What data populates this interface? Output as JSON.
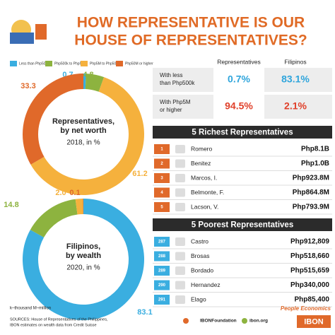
{
  "title_lines": [
    "HOW REPRESENTATIVE IS OUR",
    "HOUSE OF REPRESENTATIVES?"
  ],
  "chart_data": [
    {
      "type": "pie",
      "categories": [
        "Less than Php500k",
        "Php500k to Php5M",
        "Php5M to Php50M",
        "Php50M or higher"
      ],
      "colors": [
        "#3aaee0",
        "#8db33f",
        "#f5b13d",
        "#e0692a"
      ],
      "label_lines": [
        "Representatives,",
        "by net worth"
      ],
      "subtitle": "2018, in %",
      "values": [
        0.7,
        4.8,
        61.2,
        33.3
      ]
    },
    {
      "type": "pie",
      "label_lines": [
        "Filipinos,",
        "by wealth"
      ],
      "subtitle": "2020, in %",
      "values": [
        83.1,
        14.8,
        2.0,
        0.1
      ],
      "value_labels": [
        "83.1",
        "14.8",
        "2.0",
        "0.1"
      ]
    }
  ],
  "comparison": {
    "headers": [
      "Representatives",
      "Filipinos"
    ],
    "rows": [
      {
        "label_lines": [
          "With less",
          "than Php500k"
        ],
        "cells": [
          "0.7%",
          "83.1%"
        ]
      },
      {
        "label_lines": [
          "With Php5M",
          "or higher"
        ],
        "cells": [
          "94.5%",
          "2.1%"
        ]
      }
    ]
  },
  "richest": {
    "title": "5 Richest Representatives",
    "rows": [
      [
        "1",
        "Romero",
        "Php8.1B"
      ],
      [
        "2",
        "Benitez",
        "Php1.0B"
      ],
      [
        "3",
        "Marcos, I.",
        "Php923.8M"
      ],
      [
        "4",
        "Belmonte, F.",
        "Php864.8M"
      ],
      [
        "5",
        "Lacson, V.",
        "Php793.9M"
      ]
    ]
  },
  "poorest": {
    "title": "5 Poorest Representatives",
    "rows": [
      [
        "287",
        "Castro",
        "Php912,809"
      ],
      [
        "288",
        "Brosas",
        "Php518,660"
      ],
      [
        "289",
        "Bordado",
        "Php515,659"
      ],
      [
        "290",
        "Hernandez",
        "Php340,000"
      ],
      [
        "291",
        "Elago",
        "Php85,400"
      ]
    ]
  },
  "footer": {
    "units": "k–thousand   M–million",
    "sources": [
      "SOURCES: House of Representatives of the Philippines,",
      "IBON estimates on wealth data from Credit Suisse"
    ],
    "social": "IBONFoundation",
    "site": "ibon.org",
    "logo": "IBON",
    "brand": "People Economics"
  }
}
